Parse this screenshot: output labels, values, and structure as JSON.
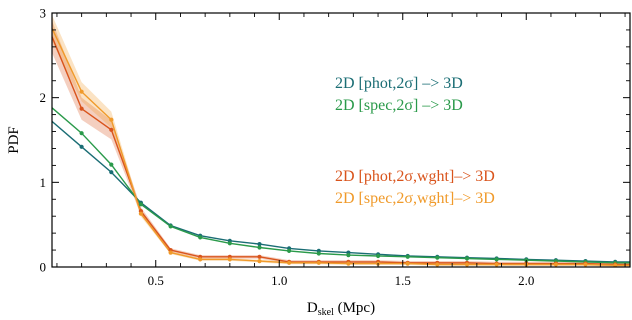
{
  "chart_data": {
    "type": "line",
    "xlabel_main": "D",
    "xlabel_sub": "skel",
    "xlabel_unit": " (Mpc)",
    "ylabel": "PDF",
    "xlim": [
      0.08,
      2.42
    ],
    "ylim": [
      0,
      3
    ],
    "x_ticks": [
      0.5,
      1.0,
      1.5,
      2.0
    ],
    "x_tick_labels": [
      "0.5",
      "1.0",
      "1.5",
      "2.0"
    ],
    "y_ticks": [
      0,
      1,
      2,
      3
    ],
    "y_tick_labels": [
      "0",
      "1",
      "2",
      "3"
    ],
    "grid": false,
    "legend": "right",
    "series": [
      {
        "name": "2D [phot,2σ] –> 3D",
        "color": "#1a6d74",
        "x": [
          0.08,
          0.2,
          0.32,
          0.44,
          0.56,
          0.68,
          0.8,
          0.92,
          1.04,
          1.16,
          1.28,
          1.4,
          1.52,
          1.64,
          1.76,
          1.88,
          2.0,
          2.12,
          2.24,
          2.36,
          2.42
        ],
        "y": [
          1.72,
          1.42,
          1.12,
          0.76,
          0.49,
          0.37,
          0.31,
          0.27,
          0.22,
          0.19,
          0.17,
          0.15,
          0.13,
          0.12,
          0.11,
          0.1,
          0.09,
          0.08,
          0.07,
          0.06,
          0.06
        ]
      },
      {
        "name": "2D [spec,2σ] –> 3D",
        "color": "#2a9a4a",
        "x": [
          0.08,
          0.2,
          0.32,
          0.44,
          0.56,
          0.68,
          0.8,
          0.92,
          1.04,
          1.16,
          1.28,
          1.4,
          1.52,
          1.64,
          1.76,
          1.88,
          2.0,
          2.12,
          2.24,
          2.36,
          2.42
        ],
        "y": [
          1.88,
          1.58,
          1.21,
          0.74,
          0.48,
          0.35,
          0.28,
          0.23,
          0.19,
          0.16,
          0.14,
          0.13,
          0.12,
          0.11,
          0.1,
          0.09,
          0.08,
          0.07,
          0.06,
          0.05,
          0.05
        ]
      },
      {
        "name": "2D [phot,2σ,wght]–> 3D",
        "color": "#d9541c",
        "band": 0.14,
        "x": [
          0.08,
          0.2,
          0.32,
          0.44,
          0.56,
          0.68,
          0.8,
          0.92,
          1.04,
          1.16,
          1.28,
          1.4,
          1.52,
          1.64,
          1.76,
          1.88,
          2.0,
          2.12,
          2.24,
          2.36,
          2.42
        ],
        "y": [
          2.72,
          1.87,
          1.62,
          0.66,
          0.2,
          0.12,
          0.12,
          0.12,
          0.06,
          0.06,
          0.06,
          0.06,
          0.05,
          0.05,
          0.05,
          0.04,
          0.04,
          0.04,
          0.04,
          0.03,
          0.03
        ]
      },
      {
        "name": "2D [spec,2σ,wght]–> 3D",
        "color": "#f09a2a",
        "band": 0.11,
        "x": [
          0.08,
          0.2,
          0.32,
          0.44,
          0.56,
          0.68,
          0.8,
          0.92,
          1.04,
          1.16,
          1.28,
          1.4,
          1.52,
          1.64,
          1.76,
          1.88,
          2.0,
          2.12,
          2.24,
          2.36,
          2.42
        ],
        "y": [
          2.82,
          2.07,
          1.74,
          0.63,
          0.17,
          0.09,
          0.09,
          0.07,
          0.05,
          0.05,
          0.04,
          0.04,
          0.04,
          0.03,
          0.03,
          0.03,
          0.03,
          0.03,
          0.03,
          0.02,
          0.02
        ]
      }
    ]
  }
}
